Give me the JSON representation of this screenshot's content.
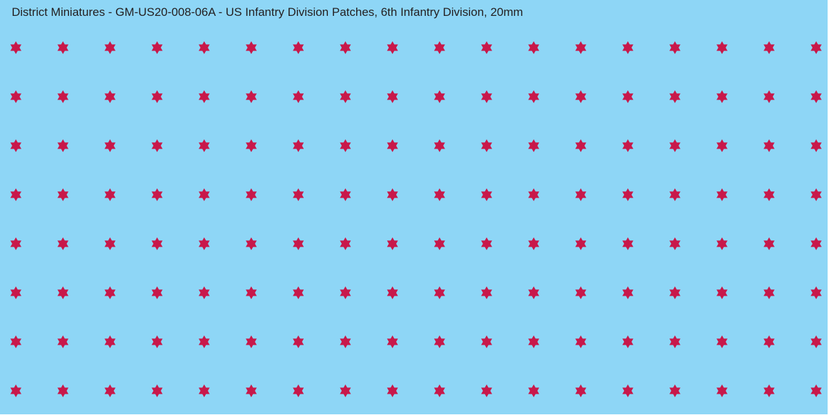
{
  "sheet": {
    "title": "District Miniatures - GM-US20-008-06A - US Infantry Division Patches, 6th Infantry Division, 20mm",
    "background_color": "#8ed6f6",
    "star_color": "#c8184a",
    "insignia_icon": "six-pointed-star-icon",
    "rows": 8,
    "columns": 18
  }
}
